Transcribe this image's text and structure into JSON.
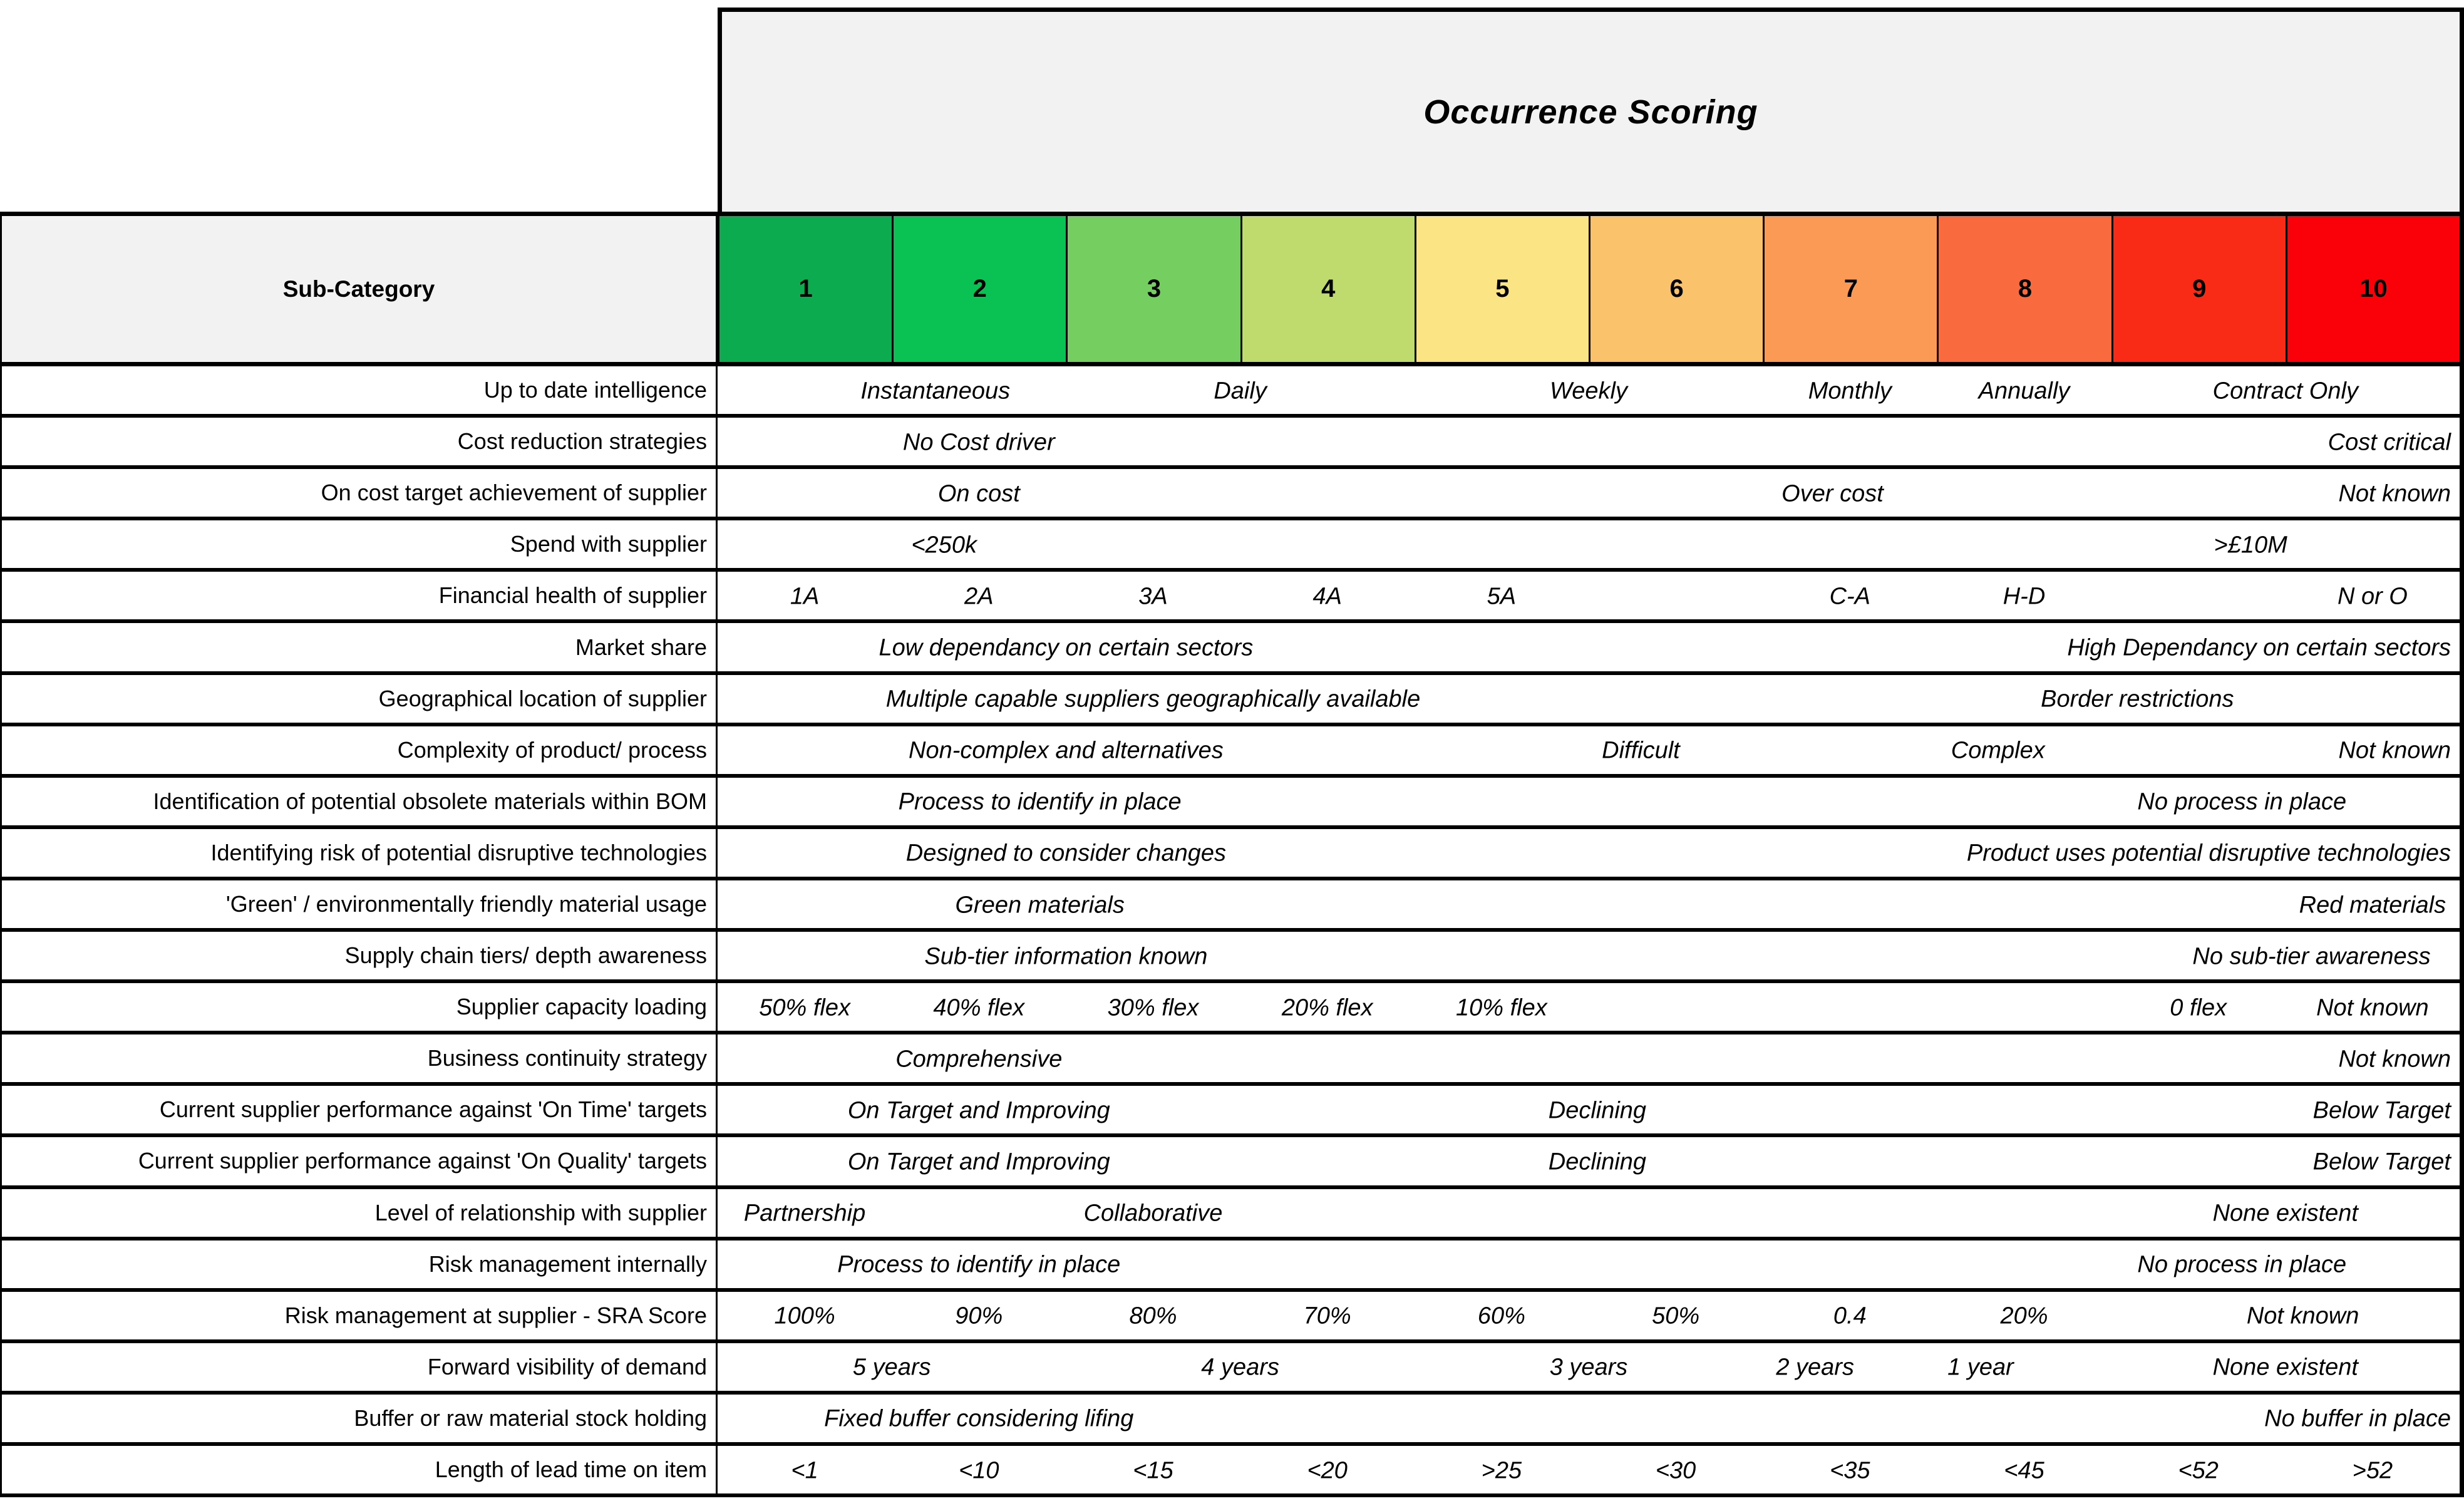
{
  "header": {
    "title": "Occurrence Scoring",
    "subcategory_label": "Sub-Category",
    "score_columns": [
      {
        "score": "1",
        "color": "#0CAB4F"
      },
      {
        "score": "2",
        "color": "#0AC154"
      },
      {
        "score": "3",
        "color": "#75CF60"
      },
      {
        "score": "4",
        "color": "#BFDB6E"
      },
      {
        "score": "5",
        "color": "#FAE483"
      },
      {
        "score": "6",
        "color": "#FBC26C"
      },
      {
        "score": "7",
        "color": "#FA9A55"
      },
      {
        "score": "8",
        "color": "#F96A3E"
      },
      {
        "score": "9",
        "color": "#F92B17"
      },
      {
        "score": "10",
        "color": "#FA0008"
      }
    ]
  },
  "styles": {
    "header_bg": "#F2F2F2",
    "border_color": "#000000",
    "page_bg": "#FFFFFF"
  },
  "rows": [
    {
      "label": "Up to date intelligence",
      "items": [
        {
          "text": "Instantaneous",
          "x": 12.5,
          "align": "center"
        },
        {
          "text": "Daily",
          "x": 30,
          "align": "center"
        },
        {
          "text": "Weekly",
          "x": 50,
          "align": "center"
        },
        {
          "text": "Monthly",
          "x": 65,
          "align": "center"
        },
        {
          "text": "Annually",
          "x": 75,
          "align": "center"
        },
        {
          "text": "Contract Only",
          "x": 90,
          "align": "center"
        }
      ]
    },
    {
      "label": "Cost reduction strategies",
      "items": [
        {
          "text": "No Cost driver",
          "x": 15,
          "align": "center"
        },
        {
          "text": "Cost critical",
          "align": "right"
        }
      ]
    },
    {
      "label": "On cost target achievement of supplier",
      "items": [
        {
          "text": "On cost",
          "x": 15,
          "align": "center"
        },
        {
          "text": "Over cost",
          "x": 64,
          "align": "center"
        },
        {
          "text": "Not known",
          "align": "right"
        }
      ]
    },
    {
      "label": "Spend with supplier",
      "items": [
        {
          "text": "<250k",
          "x": 13,
          "align": "center"
        },
        {
          "text": ">£10M",
          "x": 88,
          "align": "center"
        }
      ]
    },
    {
      "label": "Financial health of supplier",
      "items": [
        {
          "text": "1A",
          "x": 5,
          "align": "center"
        },
        {
          "text": "2A",
          "x": 15,
          "align": "center"
        },
        {
          "text": "3A",
          "x": 25,
          "align": "center"
        },
        {
          "text": "4A",
          "x": 35,
          "align": "center"
        },
        {
          "text": "5A",
          "x": 45,
          "align": "center"
        },
        {
          "text": "C-A",
          "x": 65,
          "align": "center"
        },
        {
          "text": "H-D",
          "x": 75,
          "align": "center"
        },
        {
          "text": "N or O",
          "x": 95,
          "align": "center"
        }
      ]
    },
    {
      "label": "Market share",
      "items": [
        {
          "text": "Low dependancy on certain sectors",
          "x": 20,
          "align": "center"
        },
        {
          "text": "High Dependancy on certain sectors",
          "align": "right"
        }
      ]
    },
    {
      "label": "Geographical location of supplier",
      "items": [
        {
          "text": "Multiple capable suppliers geographically available",
          "x": 25,
          "align": "center"
        },
        {
          "text": "Border restrictions",
          "x": 81.5,
          "align": "center"
        }
      ]
    },
    {
      "label": "Complexity of product/ process",
      "items": [
        {
          "text": "Non-complex and alternatives",
          "x": 20,
          "align": "center"
        },
        {
          "text": "Difficult",
          "x": 53,
          "align": "center"
        },
        {
          "text": "Complex",
          "x": 73.5,
          "align": "center"
        },
        {
          "text": "Not known",
          "align": "right"
        }
      ]
    },
    {
      "label": "Identification of potential obsolete materials within BOM",
      "items": [
        {
          "text": "Process to identify in place",
          "x": 18.5,
          "align": "center"
        },
        {
          "text": "No process in place",
          "x": 87.5,
          "align": "center"
        }
      ]
    },
    {
      "label": "Identifying risk of potential disruptive technologies",
      "items": [
        {
          "text": "Designed to consider changes",
          "x": 20,
          "align": "center"
        },
        {
          "text": "Product uses potential disruptive technologies",
          "align": "right"
        }
      ]
    },
    {
      "label": "'Green' / environmentally friendly material usage",
      "items": [
        {
          "text": "Green materials",
          "x": 18.5,
          "align": "center"
        },
        {
          "text": "Red materials",
          "x": 95,
          "align": "center"
        }
      ]
    },
    {
      "label": "Supply chain tiers/ depth awareness",
      "items": [
        {
          "text": "Sub-tier information known",
          "x": 20,
          "align": "center"
        },
        {
          "text": "No sub-tier awareness",
          "x": 91.5,
          "align": "center"
        }
      ]
    },
    {
      "label": "Supplier capacity loading",
      "items": [
        {
          "text": "50% flex",
          "x": 5,
          "align": "center"
        },
        {
          "text": "40% flex",
          "x": 15,
          "align": "center"
        },
        {
          "text": "30% flex",
          "x": 25,
          "align": "center"
        },
        {
          "text": "20% flex",
          "x": 35,
          "align": "center"
        },
        {
          "text": "10% flex",
          "x": 45,
          "align": "center"
        },
        {
          "text": "0 flex",
          "x": 85,
          "align": "center"
        },
        {
          "text": "Not known",
          "x": 95,
          "align": "center"
        }
      ]
    },
    {
      "label": "Business continuity strategy",
      "items": [
        {
          "text": "Comprehensive",
          "x": 15,
          "align": "center"
        },
        {
          "text": "Not known",
          "align": "right"
        }
      ]
    },
    {
      "label": "Current supplier performance against 'On Time' targets",
      "items": [
        {
          "text": "On Target and Improving",
          "x": 15,
          "align": "center"
        },
        {
          "text": "Declining",
          "x": 50.5,
          "align": "center"
        },
        {
          "text": "Below Target",
          "align": "right"
        }
      ]
    },
    {
      "label": "Current supplier performance against 'On Quality' targets",
      "items": [
        {
          "text": "On Target and Improving",
          "x": 15,
          "align": "center"
        },
        {
          "text": "Declining",
          "x": 50.5,
          "align": "center"
        },
        {
          "text": "Below Target",
          "align": "right"
        }
      ]
    },
    {
      "label": "Level of relationship with supplier",
      "items": [
        {
          "text": "Partnership",
          "x": 5,
          "align": "center"
        },
        {
          "text": "Collaborative",
          "x": 25,
          "align": "center"
        },
        {
          "text": "None existent",
          "x": 90,
          "align": "center"
        }
      ]
    },
    {
      "label": "Risk management internally",
      "items": [
        {
          "text": "Process to identify in place",
          "x": 15,
          "align": "center"
        },
        {
          "text": "No process in place",
          "x": 87.5,
          "align": "center"
        }
      ]
    },
    {
      "label": "Risk management at supplier - SRA Score",
      "items": [
        {
          "text": "100%",
          "x": 5,
          "align": "center"
        },
        {
          "text": "90%",
          "x": 15,
          "align": "center"
        },
        {
          "text": "80%",
          "x": 25,
          "align": "center"
        },
        {
          "text": "70%",
          "x": 35,
          "align": "center"
        },
        {
          "text": "60%",
          "x": 45,
          "align": "center"
        },
        {
          "text": "50%",
          "x": 55,
          "align": "center"
        },
        {
          "text": "0.4",
          "x": 65,
          "align": "center"
        },
        {
          "text": "20%",
          "x": 75,
          "align": "center"
        },
        {
          "text": "Not known",
          "x": 91,
          "align": "center"
        }
      ]
    },
    {
      "label": "Forward visibility of demand",
      "items": [
        {
          "text": "5 years",
          "x": 10,
          "align": "center"
        },
        {
          "text": "4 years",
          "x": 30,
          "align": "center"
        },
        {
          "text": "3 years",
          "x": 50,
          "align": "center"
        },
        {
          "text": "2 years",
          "x": 63,
          "align": "center"
        },
        {
          "text": "1 year",
          "x": 72.5,
          "align": "center"
        },
        {
          "text": "None existent",
          "x": 90,
          "align": "center"
        }
      ]
    },
    {
      "label": "Buffer or raw material stock holding",
      "items": [
        {
          "text": "Fixed buffer considering lifing",
          "x": 15,
          "align": "center"
        },
        {
          "text": "No buffer in place",
          "align": "right"
        }
      ]
    },
    {
      "label": "Length of lead time on item",
      "items": [
        {
          "text": "<1",
          "x": 5,
          "align": "center"
        },
        {
          "text": "<10",
          "x": 15,
          "align": "center"
        },
        {
          "text": "<15",
          "x": 25,
          "align": "center"
        },
        {
          "text": "<20",
          "x": 35,
          "align": "center"
        },
        {
          "text": ">25",
          "x": 45,
          "align": "center"
        },
        {
          "text": "<30",
          "x": 55,
          "align": "center"
        },
        {
          "text": "<35",
          "x": 65,
          "align": "center"
        },
        {
          "text": "<45",
          "x": 75,
          "align": "center"
        },
        {
          "text": "<52",
          "x": 85,
          "align": "center"
        },
        {
          "text": ">52",
          "x": 95,
          "align": "center"
        }
      ]
    }
  ]
}
